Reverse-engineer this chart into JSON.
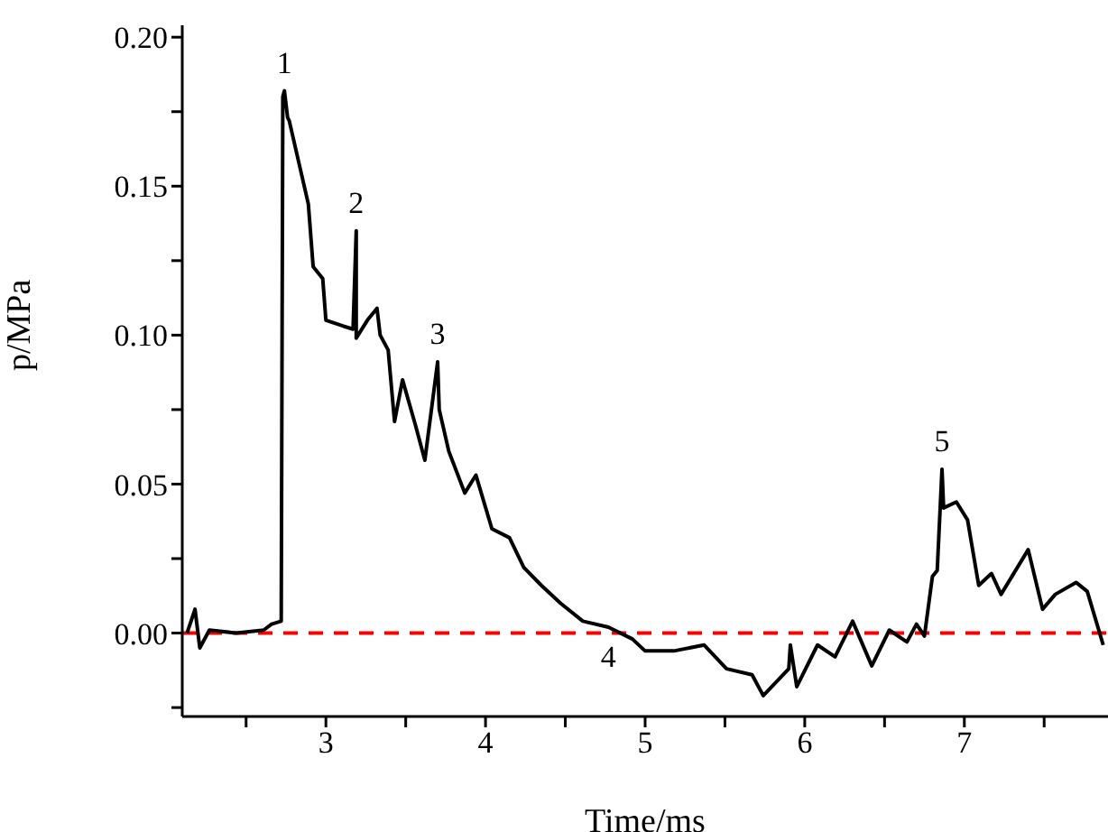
{
  "chart_data": {
    "type": "line",
    "xlabel": "Time/ms",
    "ylabel": "p/MPa",
    "x": [
      2.13,
      2.18,
      2.21,
      2.27,
      2.44,
      2.61,
      2.66,
      2.72,
      2.73,
      2.74,
      2.76,
      2.77,
      2.89,
      2.92,
      2.98,
      3.0,
      3.11,
      3.17,
      3.19,
      3.19,
      3.26,
      3.32,
      3.34,
      3.39,
      3.43,
      3.48,
      3.56,
      3.62,
      3.7,
      3.71,
      3.77,
      3.87,
      3.94,
      4.04,
      4.15,
      4.24,
      4.35,
      4.47,
      4.61,
      4.77,
      4.92,
      5.0,
      5.18,
      5.37,
      5.51,
      5.67,
      5.74,
      5.9,
      5.91,
      5.95,
      6.08,
      6.19,
      6.3,
      6.42,
      6.53,
      6.64,
      6.7,
      6.75,
      6.8,
      6.83,
      6.86,
      6.87,
      6.95,
      7.02,
      7.09,
      7.17,
      7.23,
      7.4,
      7.49,
      7.57,
      7.7,
      7.77,
      7.87
    ],
    "series": [
      {
        "color": "#000000",
        "values": [
          0.0,
          0.008,
          -0.005,
          0.001,
          0.0,
          0.001,
          0.003,
          0.004,
          0.18,
          0.182,
          0.173,
          0.172,
          0.144,
          0.123,
          0.119,
          0.105,
          0.103,
          0.102,
          0.135,
          0.099,
          0.105,
          0.109,
          0.1,
          0.095,
          0.071,
          0.085,
          0.07,
          0.058,
          0.091,
          0.075,
          0.061,
          0.047,
          0.053,
          0.035,
          0.032,
          0.022,
          0.016,
          0.01,
          0.004,
          0.002,
          -0.002,
          -0.006,
          -0.006,
          -0.004,
          -0.012,
          -0.014,
          -0.021,
          -0.012,
          -0.004,
          -0.018,
          -0.004,
          -0.008,
          0.004,
          -0.011,
          0.001,
          -0.003,
          0.003,
          -0.001,
          0.019,
          0.021,
          0.055,
          0.042,
          0.044,
          0.038,
          0.016,
          0.02,
          0.013,
          0.028,
          0.008,
          0.013,
          0.017,
          0.014,
          -0.004
        ]
      }
    ],
    "xlim": [
      2.1,
      7.9
    ],
    "ylim": [
      -0.028,
      0.204
    ],
    "xticks": [
      {
        "value": 2.5,
        "label": null
      },
      3,
      {
        "value": 3.5,
        "label": null
      },
      4,
      {
        "value": 4.5,
        "label": null
      },
      5,
      {
        "value": 5.5,
        "label": null
      },
      6,
      {
        "value": 6.5,
        "label": null
      },
      7,
      {
        "value": 7.5,
        "label": null
      }
    ],
    "yticks": [
      {
        "value": -0.025,
        "label": null
      },
      {
        "value": 0,
        "label": "0.00"
      },
      {
        "value": 0.025,
        "label": null
      },
      {
        "value": 0.05,
        "label": "0.05"
      },
      {
        "value": 0.075,
        "label": null
      },
      {
        "value": 0.1,
        "label": "0.10"
      },
      {
        "value": 0.125,
        "label": null
      },
      {
        "value": 0.15,
        "label": "0.15"
      },
      {
        "value": 0.175,
        "label": null
      },
      {
        "value": 0.2,
        "label": "0.20"
      }
    ],
    "ref_lines": [
      {
        "axis": "y",
        "value": 0,
        "color": "#ff0000",
        "line_style": "dashed"
      }
    ],
    "annotations": [
      {
        "text": "1",
        "x": 2.74,
        "y": 0.182
      },
      {
        "text": "2",
        "x": 3.19,
        "y": 0.135
      },
      {
        "text": "3",
        "x": 3.7,
        "y": 0.091
      },
      {
        "text": "4",
        "x": 4.77,
        "y": 0.002
      },
      {
        "text": "5",
        "x": 6.86,
        "y": 0.055
      }
    ],
    "grid": false,
    "legend": false,
    "marker": "none",
    "line_style": "solid"
  }
}
